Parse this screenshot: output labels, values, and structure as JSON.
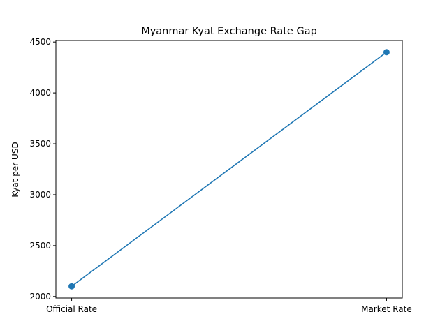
{
  "chart_data": {
    "type": "line",
    "title": "Myanmar Kyat Exchange Rate Gap",
    "xlabel": "",
    "ylabel": "Kyat per USD",
    "categories": [
      "Official Rate",
      "Market Rate"
    ],
    "series": [
      {
        "values": [
          2100,
          4400
        ],
        "color": "#1f77b4",
        "marker": "circle"
      }
    ],
    "ylim": [
      1985,
      4515
    ],
    "yticks": [
      2000,
      2500,
      3000,
      3500,
      4000,
      4500
    ],
    "grid": false,
    "legend": "none"
  }
}
